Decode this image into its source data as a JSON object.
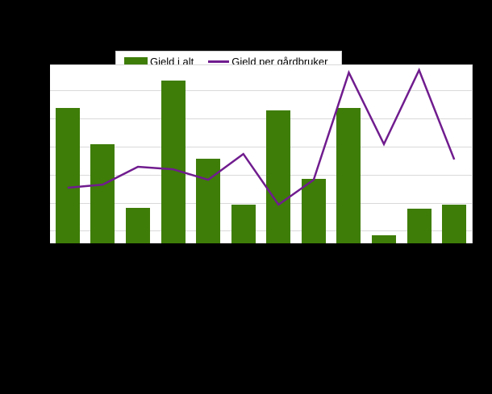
{
  "page": {
    "background": "#000000"
  },
  "chart_data": {
    "type": "bar+line",
    "n_categories": 12,
    "axis_tick_labels_visible": false,
    "note": "Chart drawn on black background; title and axis tick labels are not visible in the pixels. Values are estimated as percent of plot-area height (0 = baseline, 100 = top gridline).",
    "categories": [],
    "series": [
      {
        "name": "Gjeld i alt",
        "type": "bar",
        "color": "#3e7d08",
        "values_pct": [
          76.0,
          55.7,
          19.9,
          91.4,
          47.5,
          21.7,
          74.7,
          36.2,
          76.0,
          4.5,
          19.5,
          21.7
        ]
      },
      {
        "name": "Gjeld per gårdbruker",
        "type": "line",
        "color": "#701c8e",
        "values_pct": [
          31.2,
          33.0,
          43.0,
          41.6,
          35.7,
          50.2,
          21.7,
          35.7,
          95.9,
          55.7,
          97.3,
          47.1
        ]
      }
    ],
    "value_axis": {
      "labels_visible": false,
      "gridlines_pct": [
        7.2,
        22.6,
        38.5,
        54.3,
        70.1,
        86.0
      ],
      "gridline_color": "#d9d9d9"
    },
    "legend": {
      "position": "top"
    }
  }
}
